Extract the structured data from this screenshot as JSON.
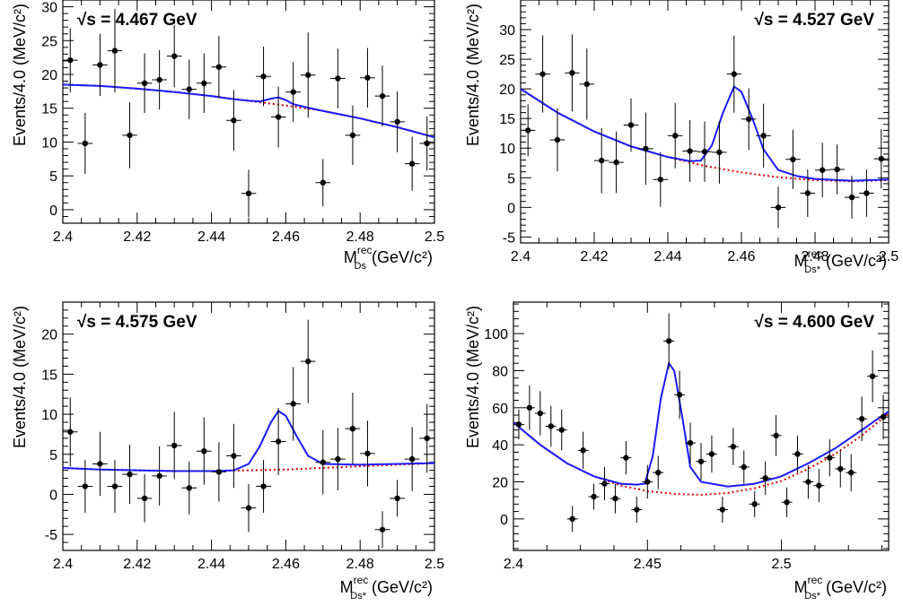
{
  "chart_data": [
    {
      "type": "scatter",
      "energy_label": "√s = 4.467 GeV",
      "ylabel": "Events/4.0 (MeV/c²)",
      "xlabel": "M(rec, Ds) (GeV/c²)",
      "xlabel_main": "M",
      "xlabel_sup": "rec",
      "xlabel_sub": "Ds",
      "xlabel_unit": "(GeV/c²)",
      "xlim": [
        2.4,
        2.5
      ],
      "ylim": [
        -2,
        31
      ],
      "x_ticks": [
        2.4,
        2.42,
        2.44,
        2.46,
        2.48,
        2.5
      ],
      "x_tick_labels": [
        "2.4",
        "2.42",
        "2.44",
        "2.46",
        "2.48",
        "2.5"
      ],
      "y_ticks": [
        0,
        5,
        10,
        15,
        20,
        25,
        30
      ],
      "y_tick_labels": [
        "0",
        "5",
        "10",
        "15",
        "20",
        "25",
        "30"
      ],
      "points": [
        {
          "x": 2.402,
          "y": 22.1,
          "err": 4.7
        },
        {
          "x": 2.406,
          "y": 9.8,
          "err": 4.5
        },
        {
          "x": 2.41,
          "y": 21.4,
          "err": 4.6
        },
        {
          "x": 2.414,
          "y": 23.5,
          "err": 6.2
        },
        {
          "x": 2.418,
          "y": 11.0,
          "err": 4.9
        },
        {
          "x": 2.422,
          "y": 18.7,
          "err": 4.4
        },
        {
          "x": 2.426,
          "y": 19.2,
          "err": 4.4
        },
        {
          "x": 2.43,
          "y": 22.7,
          "err": 4.6
        },
        {
          "x": 2.434,
          "y": 17.8,
          "err": 4.4
        },
        {
          "x": 2.438,
          "y": 18.7,
          "err": 4.4
        },
        {
          "x": 2.442,
          "y": 21.1,
          "err": 4.6
        },
        {
          "x": 2.446,
          "y": 13.2,
          "err": 4.5
        },
        {
          "x": 2.45,
          "y": 2.4,
          "err": 3.5
        },
        {
          "x": 2.454,
          "y": 19.7,
          "err": 4.4
        },
        {
          "x": 2.458,
          "y": 13.7,
          "err": 4.5
        },
        {
          "x": 2.462,
          "y": 17.4,
          "err": 4.4
        },
        {
          "x": 2.466,
          "y": 19.9,
          "err": 6.3
        },
        {
          "x": 2.47,
          "y": 4.0,
          "err": 3.5
        },
        {
          "x": 2.474,
          "y": 19.4,
          "err": 4.4
        },
        {
          "x": 2.478,
          "y": 11.0,
          "err": 4.4
        },
        {
          "x": 2.482,
          "y": 19.5,
          "err": 4.4
        },
        {
          "x": 2.486,
          "y": 16.8,
          "err": 4.5
        },
        {
          "x": 2.49,
          "y": 13.0,
          "err": 4.5
        },
        {
          "x": 2.494,
          "y": 6.8,
          "err": 4.0
        },
        {
          "x": 2.498,
          "y": 9.8,
          "err": 4.0
        }
      ],
      "fit_total": {
        "x": [
          2.4,
          2.41,
          2.42,
          2.43,
          2.44,
          2.445,
          2.45,
          2.453,
          2.456,
          2.458,
          2.46,
          2.462,
          2.465,
          2.47,
          2.48,
          2.49,
          2.5
        ],
        "y": [
          18.5,
          18.3,
          17.9,
          17.4,
          16.8,
          16.4,
          16.1,
          16.0,
          16.4,
          16.6,
          16.2,
          15.6,
          15.2,
          14.6,
          13.5,
          12.2,
          10.7
        ]
      },
      "fit_background": {
        "x": [
          2.4,
          2.41,
          2.42,
          2.43,
          2.44,
          2.45,
          2.46,
          2.47,
          2.48,
          2.49,
          2.5
        ],
        "y": [
          18.5,
          18.3,
          17.9,
          17.4,
          16.8,
          16.1,
          15.4,
          14.6,
          13.5,
          12.2,
          10.7
        ]
      }
    },
    {
      "type": "scatter",
      "energy_label": "√s = 4.527 GeV",
      "ylabel": "Events/4.0 (MeV/c²)",
      "xlabel": "M(rec, Ds*) (GeV/c²)",
      "xlabel_main": "M",
      "xlabel_sup": "rec",
      "xlabel_sub": "Ds*",
      "xlabel_unit": "(GeV/c²)",
      "xlim": [
        2.4,
        2.5
      ],
      "ylim": [
        -6,
        35
      ],
      "x_ticks": [
        2.4,
        2.42,
        2.44,
        2.46,
        2.48,
        2.5
      ],
      "x_tick_labels": [
        "2.4",
        "2.42",
        "2.44",
        "2.46",
        "2.48",
        "2.5"
      ],
      "y_ticks": [
        -5,
        0,
        5,
        10,
        15,
        20,
        25,
        30
      ],
      "y_tick_labels": [
        "-5",
        "0",
        "5",
        "10",
        "15",
        "20",
        "25",
        "30"
      ],
      "points": [
        {
          "x": 2.402,
          "y": 13.0,
          "err": 4.4
        },
        {
          "x": 2.406,
          "y": 22.5,
          "err": 6.5
        },
        {
          "x": 2.41,
          "y": 11.4,
          "err": 5.3
        },
        {
          "x": 2.414,
          "y": 22.7,
          "err": 6.5
        },
        {
          "x": 2.418,
          "y": 20.8,
          "err": 6.0
        },
        {
          "x": 2.422,
          "y": 7.9,
          "err": 5.5
        },
        {
          "x": 2.426,
          "y": 7.6,
          "err": 5.2
        },
        {
          "x": 2.43,
          "y": 13.9,
          "err": 4.5
        },
        {
          "x": 2.434,
          "y": 9.9,
          "err": 6.1
        },
        {
          "x": 2.438,
          "y": 4.7,
          "err": 4.6
        },
        {
          "x": 2.442,
          "y": 12.1,
          "err": 5.5
        },
        {
          "x": 2.446,
          "y": 9.5,
          "err": 5.2
        },
        {
          "x": 2.45,
          "y": 9.4,
          "err": 5.1
        },
        {
          "x": 2.454,
          "y": 9.3,
          "err": 5.3
        },
        {
          "x": 2.458,
          "y": 22.5,
          "err": 6.5
        },
        {
          "x": 2.462,
          "y": 14.9,
          "err": 5.2
        },
        {
          "x": 2.466,
          "y": 12.1,
          "err": 5.4
        },
        {
          "x": 2.47,
          "y": 0.0,
          "err": 3.5
        },
        {
          "x": 2.474,
          "y": 8.1,
          "err": 5.0
        },
        {
          "x": 2.478,
          "y": 2.4,
          "err": 4.0
        },
        {
          "x": 2.482,
          "y": 6.3,
          "err": 4.6
        },
        {
          "x": 2.486,
          "y": 6.4,
          "err": 4.2
        },
        {
          "x": 2.49,
          "y": 1.7,
          "err": 3.6
        },
        {
          "x": 2.494,
          "y": 2.4,
          "err": 4.0
        },
        {
          "x": 2.498,
          "y": 8.2,
          "err": 5.0
        }
      ],
      "fit_total": {
        "x": [
          2.4,
          2.41,
          2.42,
          2.43,
          2.44,
          2.446,
          2.449,
          2.452,
          2.455,
          2.458,
          2.46,
          2.463,
          2.466,
          2.47,
          2.475,
          2.48,
          2.49,
          2.5
        ],
        "y": [
          20.0,
          16.0,
          12.8,
          10.3,
          8.5,
          7.8,
          7.9,
          10.5,
          16.0,
          20.4,
          19.5,
          15.0,
          9.8,
          6.3,
          5.3,
          4.8,
          4.5,
          4.7
        ]
      },
      "fit_background": {
        "x": [
          2.4,
          2.41,
          2.42,
          2.43,
          2.44,
          2.45,
          2.46,
          2.47,
          2.48,
          2.49,
          2.5
        ],
        "y": [
          20.0,
          16.0,
          12.8,
          10.3,
          8.5,
          7.0,
          5.9,
          5.1,
          4.6,
          4.4,
          4.6
        ]
      }
    },
    {
      "type": "scatter",
      "energy_label": "√s = 4.575 GeV",
      "ylabel": "Events/4.0 (MeV/c²)",
      "xlabel": "M(rec, Ds*) (GeV/c²)",
      "xlabel_main": "M",
      "xlabel_sup": "rec",
      "xlabel_sub": "Ds*",
      "xlabel_unit": "(GeV/c²)",
      "xlim": [
        2.4,
        2.5
      ],
      "ylim": [
        -7,
        24
      ],
      "x_ticks": [
        2.4,
        2.42,
        2.44,
        2.46,
        2.48,
        2.5
      ],
      "x_tick_labels": [
        "2.4",
        "2.42",
        "2.44",
        "2.46",
        "2.48",
        "2.5"
      ],
      "y_ticks": [
        -5,
        0,
        5,
        10,
        15,
        20
      ],
      "y_tick_labels": [
        "-5",
        "0",
        "5",
        "10",
        "15",
        "20"
      ],
      "points": [
        {
          "x": 2.402,
          "y": 7.8,
          "err": 4.3
        },
        {
          "x": 2.406,
          "y": 1.0,
          "err": 3.3
        },
        {
          "x": 2.41,
          "y": 3.8,
          "err": 4.0
        },
        {
          "x": 2.414,
          "y": 1.0,
          "err": 3.3
        },
        {
          "x": 2.418,
          "y": 2.5,
          "err": 3.7
        },
        {
          "x": 2.422,
          "y": -0.5,
          "err": 3.0
        },
        {
          "x": 2.426,
          "y": 2.3,
          "err": 3.7
        },
        {
          "x": 2.43,
          "y": 6.1,
          "err": 4.2
        },
        {
          "x": 2.434,
          "y": 0.8,
          "err": 3.3
        },
        {
          "x": 2.438,
          "y": 5.4,
          "err": 4.2
        },
        {
          "x": 2.442,
          "y": 2.8,
          "err": 3.7
        },
        {
          "x": 2.446,
          "y": 4.8,
          "err": 4.0
        },
        {
          "x": 2.45,
          "y": -1.7,
          "err": 3.0
        },
        {
          "x": 2.454,
          "y": 1.0,
          "err": 3.3
        },
        {
          "x": 2.458,
          "y": 6.6,
          "err": 4.2
        },
        {
          "x": 2.462,
          "y": 11.3,
          "err": 4.6
        },
        {
          "x": 2.466,
          "y": 16.6,
          "err": 5.2
        },
        {
          "x": 2.47,
          "y": 4.0,
          "err": 4.0
        },
        {
          "x": 2.474,
          "y": 4.4,
          "err": 3.9
        },
        {
          "x": 2.478,
          "y": 8.2,
          "err": 4.5
        },
        {
          "x": 2.482,
          "y": 5.1,
          "err": 4.1
        },
        {
          "x": 2.486,
          "y": -4.4,
          "err": 2.3
        },
        {
          "x": 2.49,
          "y": -0.5,
          "err": 2.3
        },
        {
          "x": 2.494,
          "y": 4.4,
          "err": 4.0
        },
        {
          "x": 2.498,
          "y": 7.0,
          "err": 4.3
        }
      ],
      "fit_total": {
        "x": [
          2.4,
          2.41,
          2.42,
          2.43,
          2.44,
          2.446,
          2.45,
          2.453,
          2.456,
          2.458,
          2.46,
          2.463,
          2.466,
          2.47,
          2.48,
          2.49,
          2.5
        ],
        "y": [
          3.3,
          3.1,
          3.0,
          2.9,
          2.9,
          3.0,
          3.8,
          6.0,
          9.0,
          10.4,
          9.8,
          7.2,
          4.8,
          3.8,
          3.7,
          3.8,
          3.9
        ]
      },
      "fit_background": {
        "x": [
          2.4,
          2.41,
          2.42,
          2.43,
          2.44,
          2.45,
          2.46,
          2.47,
          2.48,
          2.49,
          2.5
        ],
        "y": [
          3.3,
          3.1,
          3.0,
          2.9,
          2.9,
          3.0,
          3.1,
          3.3,
          3.5,
          3.7,
          3.9
        ]
      }
    },
    {
      "type": "scatter",
      "energy_label": "√s = 4.600 GeV",
      "ylabel": "Events/4.0 (MeV/c²)",
      "xlabel": "M(rec, Ds*) (GeV/c²)",
      "xlabel_main": "M",
      "xlabel_sup": "rec",
      "xlabel_sub": "Ds*",
      "xlabel_unit": "(GeV/c²)",
      "xlim": [
        2.4,
        2.54
      ],
      "ylim": [
        -17,
        117
      ],
      "x_ticks": [
        2.4,
        2.45,
        2.5
      ],
      "x_tick_labels": [
        "2.4",
        "2.45",
        "2.5"
      ],
      "y_ticks": [
        0,
        20,
        40,
        60,
        80,
        100
      ],
      "y_tick_labels": [
        "0",
        "20",
        "40",
        "60",
        "80",
        "100"
      ],
      "points": [
        {
          "x": 2.402,
          "y": 51.0,
          "err": 8.0
        },
        {
          "x": 2.406,
          "y": 60.0,
          "err": 12.0
        },
        {
          "x": 2.41,
          "y": 57.0,
          "err": 12.0
        },
        {
          "x": 2.414,
          "y": 50.0,
          "err": 11.0
        },
        {
          "x": 2.418,
          "y": 48.0,
          "err": 11.0
        },
        {
          "x": 2.422,
          "y": 0.0,
          "err": 7.0
        },
        {
          "x": 2.426,
          "y": 37.0,
          "err": 10.0
        },
        {
          "x": 2.43,
          "y": 12.0,
          "err": 7.0
        },
        {
          "x": 2.434,
          "y": 19.0,
          "err": 9.0
        },
        {
          "x": 2.438,
          "y": 11.0,
          "err": 8.0
        },
        {
          "x": 2.442,
          "y": 33.0,
          "err": 9.0
        },
        {
          "x": 2.446,
          "y": 5.0,
          "err": 7.0
        },
        {
          "x": 2.45,
          "y": 20.0,
          "err": 9.0
        },
        {
          "x": 2.454,
          "y": 25.0,
          "err": 9.0
        },
        {
          "x": 2.458,
          "y": 96.0,
          "err": 15.0
        },
        {
          "x": 2.462,
          "y": 67.0,
          "err": 13.0
        },
        {
          "x": 2.466,
          "y": 41.0,
          "err": 11.0
        },
        {
          "x": 2.47,
          "y": 31.0,
          "err": 10.0
        },
        {
          "x": 2.474,
          "y": 35.0,
          "err": 10.0
        },
        {
          "x": 2.478,
          "y": 5.0,
          "err": 7.0
        },
        {
          "x": 2.482,
          "y": 39.0,
          "err": 10.0
        },
        {
          "x": 2.486,
          "y": 28.0,
          "err": 9.0
        },
        {
          "x": 2.49,
          "y": 8.0,
          "err": 7.0
        },
        {
          "x": 2.494,
          "y": 22.0,
          "err": 9.0
        },
        {
          "x": 2.498,
          "y": 45.0,
          "err": 11.0
        },
        {
          "x": 2.502,
          "y": 9.0,
          "err": 8.0
        },
        {
          "x": 2.506,
          "y": 35.0,
          "err": 10.0
        },
        {
          "x": 2.51,
          "y": 20.0,
          "err": 9.0
        },
        {
          "x": 2.514,
          "y": 18.0,
          "err": 9.0
        },
        {
          "x": 2.518,
          "y": 33.0,
          "err": 10.0
        },
        {
          "x": 2.522,
          "y": 27.0,
          "err": 10.0
        },
        {
          "x": 2.526,
          "y": 25.0,
          "err": 10.0
        },
        {
          "x": 2.53,
          "y": 54.0,
          "err": 12.0
        },
        {
          "x": 2.534,
          "y": 77.0,
          "err": 14.0
        },
        {
          "x": 2.538,
          "y": 55.0,
          "err": 12.0
        }
      ],
      "fit_total": {
        "x": [
          2.4,
          2.41,
          2.42,
          2.43,
          2.44,
          2.446,
          2.449,
          2.452,
          2.455,
          2.458,
          2.46,
          2.463,
          2.466,
          2.47,
          2.48,
          2.49,
          2.5,
          2.51,
          2.52,
          2.53,
          2.54
        ],
        "y": [
          52.0,
          40.0,
          30.0,
          23.0,
          19.0,
          18.5,
          19.0,
          34.0,
          65.0,
          84.0,
          80.0,
          55.0,
          28.0,
          20.0,
          17.5,
          19.0,
          23.0,
          30.0,
          38.0,
          48.0,
          58.0
        ]
      },
      "fit_background": {
        "x": [
          2.4,
          2.41,
          2.42,
          2.43,
          2.44,
          2.45,
          2.46,
          2.47,
          2.48,
          2.49,
          2.5,
          2.51,
          2.52,
          2.53,
          2.54
        ],
        "y": [
          52.0,
          40.0,
          30.0,
          23.0,
          18.0,
          15.0,
          13.5,
          13.0,
          14.0,
          16.5,
          20.5,
          27.0,
          35.0,
          45.0,
          57.0
        ]
      }
    }
  ]
}
